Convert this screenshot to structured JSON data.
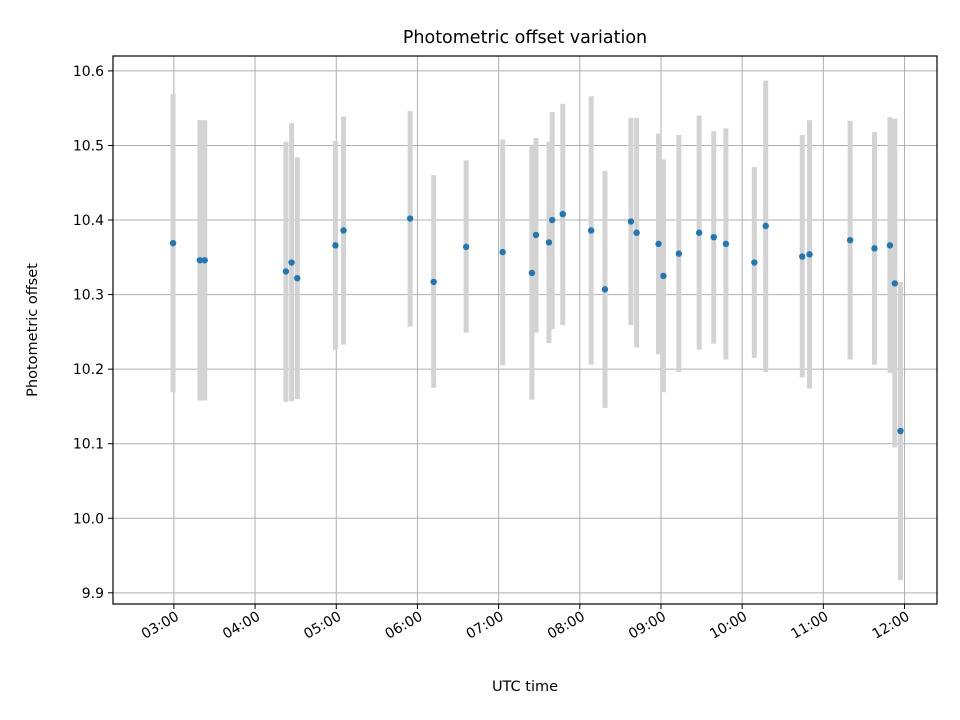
{
  "chart_data": {
    "type": "scatter",
    "title": "Photometric offset variation",
    "xlabel": "UTC time",
    "ylabel": "Photometric offset",
    "x_unit": "UTC hour",
    "xlim": [
      2.25,
      12.4
    ],
    "ylim": [
      9.885,
      10.62
    ],
    "grid": true,
    "legend": "none",
    "x_ticks": [
      {
        "value": 3,
        "label": "03:00"
      },
      {
        "value": 4,
        "label": "04:00"
      },
      {
        "value": 5,
        "label": "05:00"
      },
      {
        "value": 6,
        "label": "06:00"
      },
      {
        "value": 7,
        "label": "07:00"
      },
      {
        "value": 8,
        "label": "08:00"
      },
      {
        "value": 9,
        "label": "09:00"
      },
      {
        "value": 10,
        "label": "10:00"
      },
      {
        "value": 11,
        "label": "11:00"
      },
      {
        "value": 12,
        "label": "12:00"
      }
    ],
    "y_ticks": [
      {
        "value": 9.9,
        "label": "9.9"
      },
      {
        "value": 10.0,
        "label": "10.0"
      },
      {
        "value": 10.1,
        "label": "10.1"
      },
      {
        "value": 10.2,
        "label": "10.2"
      },
      {
        "value": 10.3,
        "label": "10.3"
      },
      {
        "value": 10.4,
        "label": "10.4"
      },
      {
        "value": 10.5,
        "label": "10.5"
      },
      {
        "value": 10.6,
        "label": "10.6"
      }
    ],
    "colors": {
      "point": "#1f77b4",
      "errorbar": "#d3d3d3",
      "grid": "#b0b0b0"
    },
    "points": [
      {
        "x": 2.99,
        "y": 10.369,
        "lo": 10.169,
        "hi": 10.569
      },
      {
        "x": 3.32,
        "y": 10.346,
        "lo": 10.158,
        "hi": 10.534
      },
      {
        "x": 3.38,
        "y": 10.346,
        "lo": 10.158,
        "hi": 10.534
      },
      {
        "x": 4.38,
        "y": 10.331,
        "lo": 10.156,
        "hi": 10.505
      },
      {
        "x": 4.45,
        "y": 10.343,
        "lo": 10.157,
        "hi": 10.53
      },
      {
        "x": 4.52,
        "y": 10.322,
        "lo": 10.16,
        "hi": 10.484
      },
      {
        "x": 4.99,
        "y": 10.366,
        "lo": 10.226,
        "hi": 10.506
      },
      {
        "x": 5.09,
        "y": 10.386,
        "lo": 10.233,
        "hi": 10.539
      },
      {
        "x": 5.91,
        "y": 10.402,
        "lo": 10.257,
        "hi": 10.546
      },
      {
        "x": 6.2,
        "y": 10.317,
        "lo": 10.175,
        "hi": 10.46
      },
      {
        "x": 6.6,
        "y": 10.364,
        "lo": 10.249,
        "hi": 10.48
      },
      {
        "x": 7.05,
        "y": 10.357,
        "lo": 10.205,
        "hi": 10.508
      },
      {
        "x": 7.41,
        "y": 10.329,
        "lo": 10.159,
        "hi": 10.5
      },
      {
        "x": 7.46,
        "y": 10.38,
        "lo": 10.249,
        "hi": 10.51
      },
      {
        "x": 7.62,
        "y": 10.37,
        "lo": 10.235,
        "hi": 10.505
      },
      {
        "x": 7.66,
        "y": 10.4,
        "lo": 10.254,
        "hi": 10.545
      },
      {
        "x": 7.79,
        "y": 10.408,
        "lo": 10.259,
        "hi": 10.556
      },
      {
        "x": 8.14,
        "y": 10.386,
        "lo": 10.206,
        "hi": 10.566
      },
      {
        "x": 8.31,
        "y": 10.307,
        "lo": 10.148,
        "hi": 10.466
      },
      {
        "x": 8.63,
        "y": 10.398,
        "lo": 10.259,
        "hi": 10.537
      },
      {
        "x": 8.7,
        "y": 10.383,
        "lo": 10.229,
        "hi": 10.537
      },
      {
        "x": 8.97,
        "y": 10.368,
        "lo": 10.22,
        "hi": 10.516
      },
      {
        "x": 9.03,
        "y": 10.325,
        "lo": 10.169,
        "hi": 10.481
      },
      {
        "x": 9.22,
        "y": 10.355,
        "lo": 10.196,
        "hi": 10.514
      },
      {
        "x": 9.47,
        "y": 10.383,
        "lo": 10.226,
        "hi": 10.54
      },
      {
        "x": 9.65,
        "y": 10.377,
        "lo": 10.234,
        "hi": 10.519
      },
      {
        "x": 9.8,
        "y": 10.368,
        "lo": 10.213,
        "hi": 10.523
      },
      {
        "x": 10.15,
        "y": 10.343,
        "lo": 10.215,
        "hi": 10.471
      },
      {
        "x": 10.29,
        "y": 10.392,
        "lo": 10.196,
        "hi": 10.587
      },
      {
        "x": 10.74,
        "y": 10.351,
        "lo": 10.189,
        "hi": 10.514
      },
      {
        "x": 10.83,
        "y": 10.354,
        "lo": 10.174,
        "hi": 10.534
      },
      {
        "x": 11.33,
        "y": 10.373,
        "lo": 10.213,
        "hi": 10.533
      },
      {
        "x": 11.63,
        "y": 10.362,
        "lo": 10.206,
        "hi": 10.518
      },
      {
        "x": 11.82,
        "y": 10.366,
        "lo": 10.195,
        "hi": 10.538
      },
      {
        "x": 11.88,
        "y": 10.315,
        "lo": 10.095,
        "hi": 10.536
      },
      {
        "x": 11.95,
        "y": 10.117,
        "lo": 9.917,
        "hi": 10.317
      }
    ]
  }
}
